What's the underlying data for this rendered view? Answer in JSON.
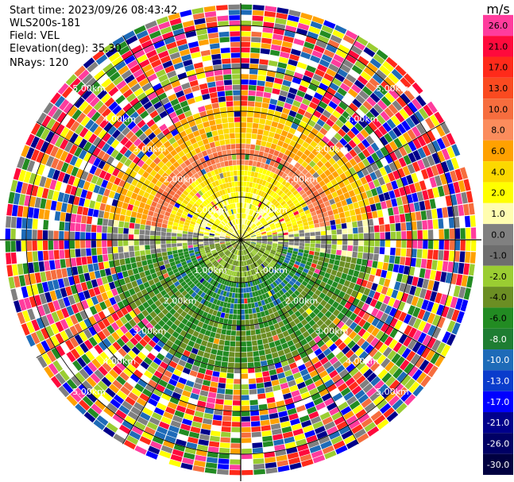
{
  "header": {
    "start_time": "Start time: 2023/09/26 08:43:42",
    "instrument": "WLS200s-181",
    "field": "Field: VEL",
    "elevation": "Elevation(deg): 35.30",
    "nrays": "NRays: 120"
  },
  "chart_data": {
    "type": "heatmap",
    "projection": "polar-ppi",
    "field": "VEL",
    "nrays": 120,
    "elevation_deg": 35.3,
    "range_rings_km": [
      1.0,
      2.0,
      3.0,
      4.0,
      5.0
    ],
    "ring_labels": [
      "1.00km",
      "2.00km",
      "3.00km",
      "4.00km",
      "5.00km"
    ],
    "max_range_km": 5.5,
    "spokes_deg": [
      0,
      30,
      60,
      90,
      120,
      150,
      180,
      210,
      240,
      270,
      300,
      330
    ],
    "colorbar": {
      "unit": "m/s",
      "ticks": [
        "26.0",
        "21.0",
        "17.0",
        "13.0",
        "10.0",
        "8.0",
        "6.0",
        "4.0",
        "2.0",
        "1.0",
        "0.0",
        "-1.0",
        "-2.0",
        "-4.0",
        "-6.0",
        "-8.0",
        "-10.0",
        "-13.0",
        "-17.0",
        "-21.0",
        "-26.0",
        "-30.0"
      ],
      "colors": [
        "#ff3c9d",
        "#ff0a3c",
        "#ff2a1a",
        "#fa4a20",
        "#f66d3e",
        "#fb8c5c",
        "#ffa100",
        "#fcd800",
        "#ffff00",
        "#fffdb0",
        "#808080",
        "#6e6e6e",
        "#9acd32",
        "#6b8e23",
        "#228b22",
        "#1e7d32",
        "#1e6bb8",
        "#0a3ccc",
        "#0000ff",
        "#00008b",
        "#000064",
        "#000040"
      ]
    },
    "palette": {
      "toward_far": "#fcd800",
      "away": "#228b22",
      "noise": [
        "#ff0a3c",
        "#ff3c9d",
        "#ffa100",
        "#ffff00",
        "#228b22",
        "#0000ff",
        "#00008b",
        "#ff2a1a",
        "#9acd32",
        "#f66d3e",
        "#1e6bb8",
        "#808080",
        "#ffffff"
      ]
    }
  }
}
